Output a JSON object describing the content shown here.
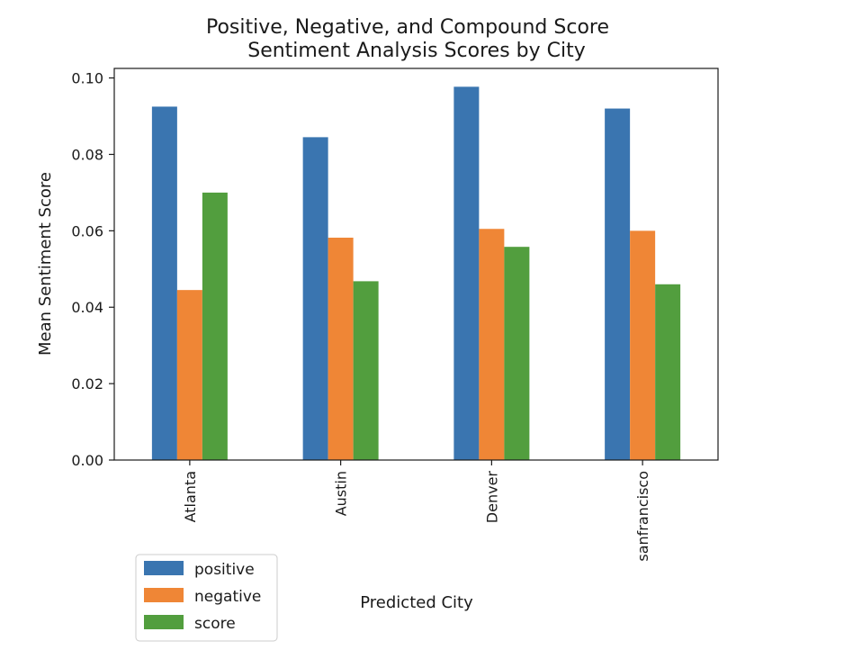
{
  "chart_data": {
    "type": "bar",
    "title": [
      "Positive, Negative, and Compound Score",
      "Sentiment Analysis Scores by City"
    ],
    "xlabel": "Predicted City",
    "ylabel": "Mean Sentiment Score",
    "categories": [
      "Atlanta",
      "Austin",
      "Denver",
      "sanfrancisco"
    ],
    "series": [
      {
        "name": "positive",
        "color": "#3a75b0",
        "values": [
          0.0925,
          0.0845,
          0.0977,
          0.092
        ]
      },
      {
        "name": "negative",
        "color": "#ef8636",
        "values": [
          0.0445,
          0.0582,
          0.0605,
          0.06
        ]
      },
      {
        "name": "score",
        "color": "#529e3e",
        "values": [
          0.07,
          0.0468,
          0.0558,
          0.046
        ]
      }
    ],
    "ylim": [
      0,
      0.1025
    ],
    "yticks": [
      0.0,
      0.02,
      0.04,
      0.06,
      0.08,
      0.1
    ],
    "ytick_labels": [
      "0.00",
      "0.02",
      "0.04",
      "0.06",
      "0.08",
      "0.10"
    ],
    "grid": false,
    "legend_position": "lower-left, outside below axes"
  }
}
